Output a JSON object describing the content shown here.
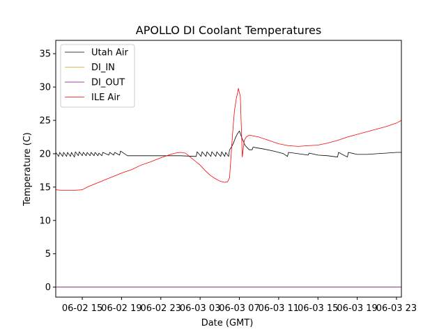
{
  "chart_data": {
    "type": "line",
    "title": "APOLLO DI Coolant Temperatures",
    "xlabel": "Date (GMT)",
    "ylabel": "Temperature (C)",
    "xlim": [
      12.3,
      47.5
    ],
    "ylim": [
      -1.5,
      37
    ],
    "yticks": [
      0,
      5,
      10,
      15,
      20,
      25,
      30,
      35
    ],
    "xticks": [
      {
        "value": 15,
        "label": "06-02 15"
      },
      {
        "value": 19,
        "label": "06-02 19"
      },
      {
        "value": 23,
        "label": "06-02 23"
      },
      {
        "value": 27,
        "label": "06-03 03"
      },
      {
        "value": 31,
        "label": "06-03 07"
      },
      {
        "value": 35,
        "label": "06-03 11"
      },
      {
        "value": 39,
        "label": "06-03 15"
      },
      {
        "value": 43,
        "label": "06-03 19"
      },
      {
        "value": 47,
        "label": "06-03 23"
      }
    ],
    "grid": false,
    "legend_position": "top-left",
    "series": [
      {
        "name": "Utah Air",
        "color": "#000000",
        "x": [
          12.3,
          12.6,
          12.7,
          13.0,
          13.1,
          13.4,
          13.5,
          13.8,
          13.9,
          14.2,
          14.3,
          14.6,
          14.7,
          15.0,
          15.1,
          15.4,
          15.5,
          15.8,
          15.9,
          16.2,
          16.3,
          16.6,
          16.7,
          17.0,
          17.1,
          17.7,
          17.8,
          18.2,
          18.3,
          18.8,
          18.9,
          19.6,
          23.0,
          25.0,
          26.6,
          26.7,
          27.1,
          27.2,
          27.6,
          27.7,
          28.1,
          28.2,
          28.6,
          28.7,
          29.1,
          29.2,
          29.5,
          29.6,
          29.9,
          30.0,
          30.2,
          30.4,
          30.6,
          30.8,
          31.0,
          31.3,
          31.6,
          32.0,
          32.3,
          32.4,
          32.7,
          33.5,
          34.5,
          35.5,
          35.9,
          36.0,
          37.0,
          38.0,
          38.1,
          39.0,
          40.0,
          41.0,
          41.1,
          42.0,
          42.1,
          43.0,
          44.0,
          45.0,
          46.0,
          47.0,
          47.5
        ],
        "y": [
          20.2,
          19.6,
          20.2,
          19.6,
          20.2,
          19.6,
          20.2,
          19.6,
          20.2,
          19.5,
          20.3,
          19.7,
          20.3,
          19.7,
          20.2,
          19.7,
          20.2,
          19.7,
          20.2,
          19.7,
          20.2,
          19.7,
          20.1,
          19.7,
          20.2,
          19.8,
          20.2,
          19.8,
          20.2,
          19.8,
          20.4,
          19.7,
          19.7,
          19.7,
          19.6,
          20.3,
          19.6,
          20.3,
          19.6,
          20.3,
          19.6,
          20.3,
          19.6,
          20.3,
          19.6,
          20.3,
          19.6,
          20.2,
          19.6,
          20.6,
          21.0,
          21.6,
          22.4,
          23.0,
          23.4,
          22.2,
          21.2,
          20.6,
          20.6,
          21.0,
          20.9,
          20.7,
          20.4,
          20.0,
          19.6,
          20.2,
          20.0,
          19.8,
          20.1,
          19.8,
          19.7,
          19.5,
          20.2,
          19.5,
          20.2,
          19.9,
          19.9,
          20.0,
          20.1,
          20.2,
          20.2
        ]
      },
      {
        "name": "DI_IN",
        "color": "#daa520",
        "x": [
          12.3,
          47.5
        ],
        "y": [
          0,
          0
        ]
      },
      {
        "name": "DI_OUT",
        "color": "#800080",
        "x": [
          12.3,
          47.5
        ],
        "y": [
          0,
          0
        ]
      },
      {
        "name": "ILE Air",
        "color": "#ff0000",
        "x": [
          12.3,
          13.0,
          14.0,
          15.0,
          15.5,
          16.0,
          17.0,
          18.0,
          19.0,
          20.0,
          21.0,
          22.0,
          23.0,
          24.0,
          24.5,
          25.0,
          25.5,
          26.0,
          26.5,
          27.0,
          27.5,
          28.0,
          28.5,
          29.0,
          29.5,
          29.8,
          30.0,
          30.1,
          30.3,
          30.5,
          30.7,
          30.8,
          30.9,
          31.0,
          31.1,
          31.2,
          31.3,
          31.5,
          31.7,
          32.0,
          33.0,
          34.0,
          35.0,
          36.0,
          37.0,
          38.0,
          39.0,
          40.0,
          41.0,
          42.0,
          43.0,
          44.0,
          45.0,
          46.0,
          47.0,
          47.5
        ],
        "y": [
          14.6,
          14.5,
          14.5,
          14.6,
          15.0,
          15.3,
          15.9,
          16.5,
          17.1,
          17.6,
          18.3,
          18.8,
          19.4,
          19.9,
          20.1,
          20.2,
          20.1,
          19.5,
          18.9,
          18.3,
          17.5,
          16.8,
          16.3,
          15.9,
          15.7,
          15.8,
          16.4,
          18.5,
          22.8,
          26.5,
          28.4,
          29.0,
          29.8,
          29.2,
          28.6,
          24.0,
          19.5,
          22.0,
          22.5,
          22.8,
          22.5,
          22.0,
          21.5,
          21.2,
          21.1,
          21.2,
          21.3,
          21.6,
          22.0,
          22.5,
          22.9,
          23.3,
          23.7,
          24.1,
          24.6,
          25.0
        ]
      }
    ]
  }
}
